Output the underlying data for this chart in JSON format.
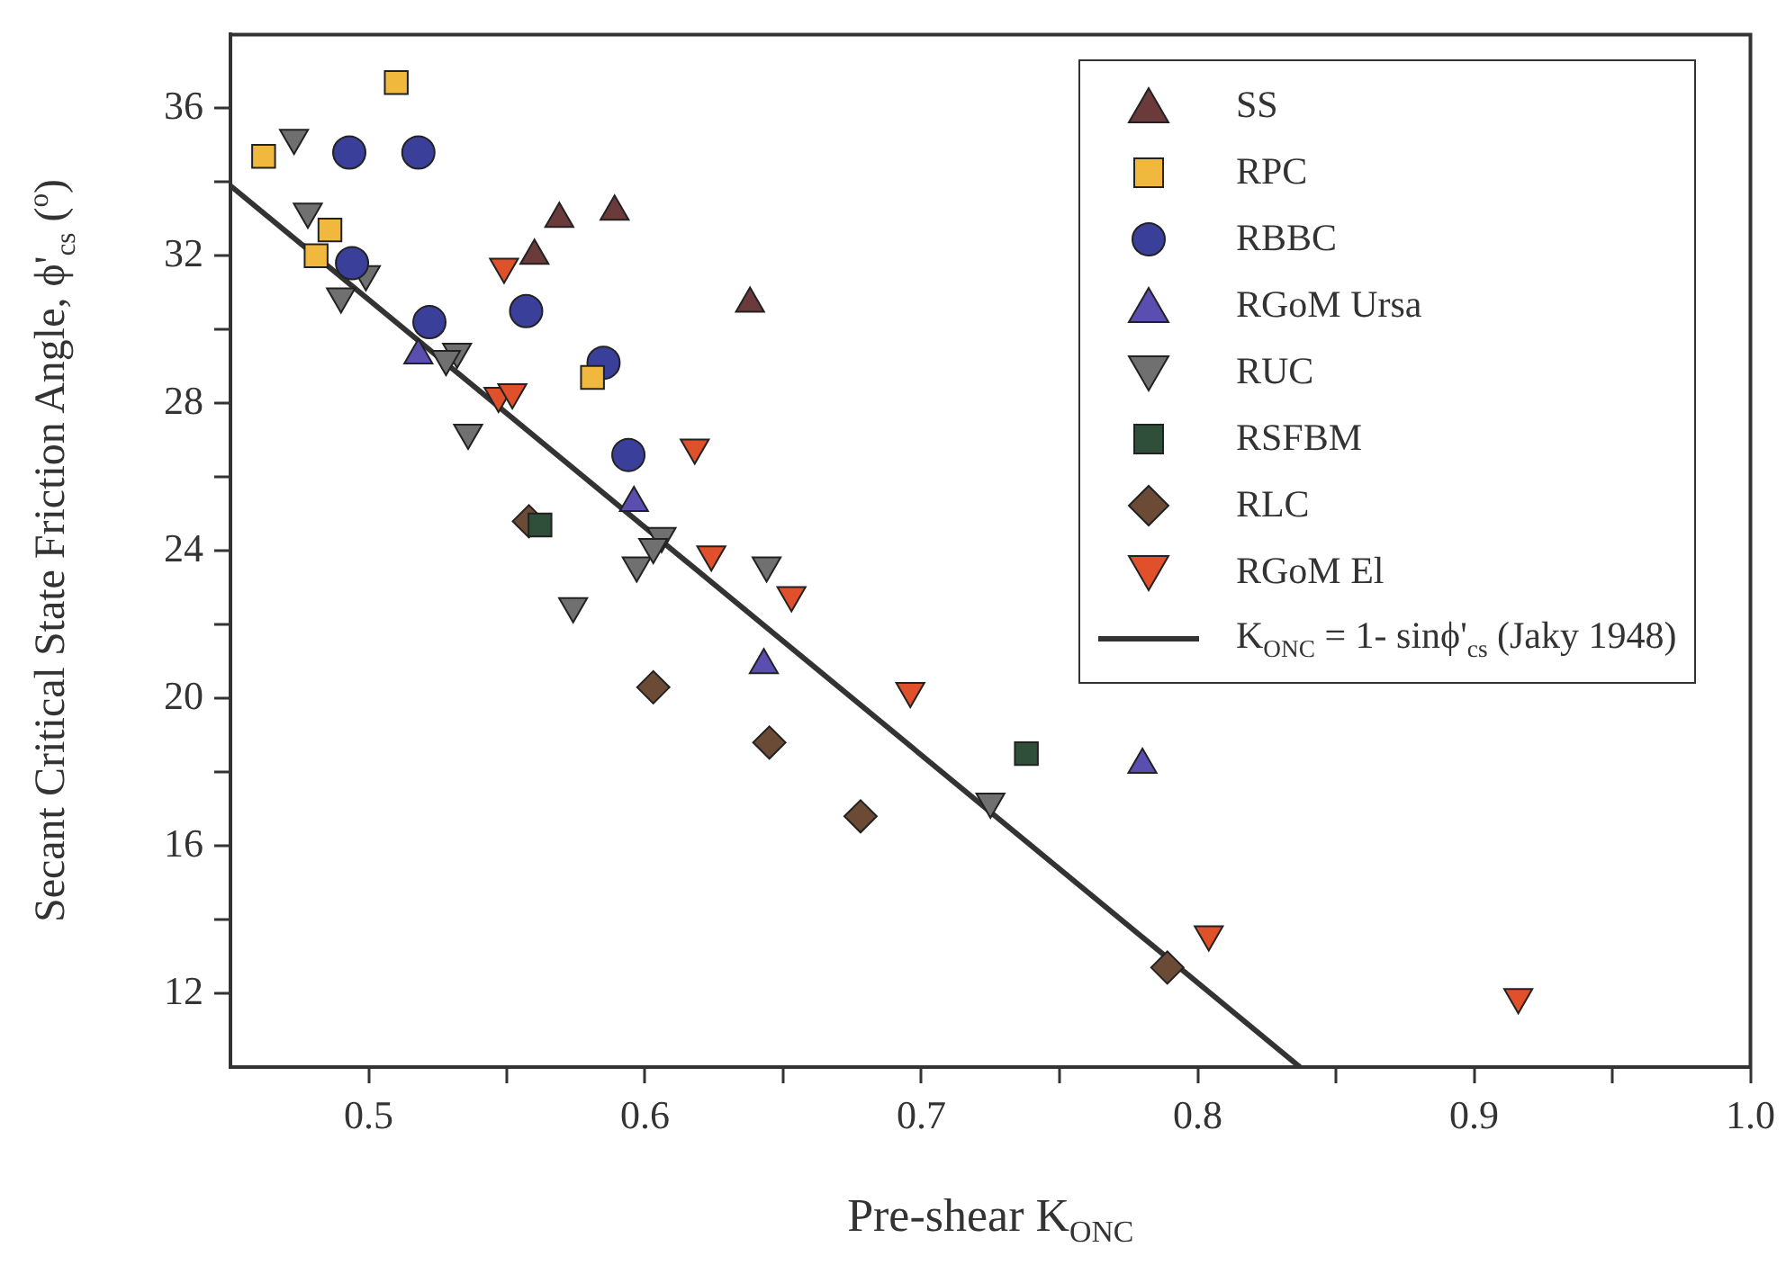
{
  "chart_data": {
    "type": "scatter",
    "xlabel": "Pre-shear K$_{ONC}$",
    "ylabel": "Secant Critical State Friction Angle, ϕ'$_{cs}$ ($^{o}$)",
    "xlim": [
      0.45,
      1.0
    ],
    "xticks": [
      0.5,
      {
        "value": 0.55,
        "label": null
      },
      0.6,
      {
        "value": 0.65,
        "label": null
      },
      0.7,
      {
        "value": 0.75,
        "label": null
      },
      0.8,
      {
        "value": 0.85,
        "label": null
      },
      0.9,
      {
        "value": 0.95,
        "label": null
      },
      "1.0"
    ],
    "ylim": [
      10,
      38
    ],
    "yticks": [
      12,
      {
        "value": 14,
        "label": null
      },
      16,
      {
        "value": 18,
        "label": null
      },
      20,
      {
        "value": 22,
        "label": null
      },
      24,
      {
        "value": 26,
        "label": null
      },
      28,
      {
        "value": 30,
        "label": null
      },
      32,
      {
        "value": 34,
        "label": null
      },
      36
    ],
    "grid": false,
    "legend": "top right",
    "series": [
      {
        "name": "SS",
        "color": "#6b3a3a",
        "marker": "triangle",
        "x": [
          0.569,
          0.589,
          0.56,
          0.638
        ],
        "values": [
          33.0,
          33.2,
          32.0,
          30.7
        ]
      },
      {
        "name": "RPC",
        "color": "#f0b83c",
        "marker": "square",
        "x": [
          0.462,
          0.51,
          0.486,
          0.481,
          0.581
        ],
        "values": [
          34.7,
          36.7,
          32.7,
          32.0,
          28.7
        ]
      },
      {
        "name": "RBBC",
        "color": "#3a3f9a",
        "marker": "circle",
        "x": [
          0.493,
          0.518,
          0.494,
          0.522,
          0.557,
          0.585,
          0.594
        ],
        "values": [
          34.8,
          34.8,
          31.8,
          30.2,
          30.5,
          29.1,
          26.6
        ]
      },
      {
        "name": "RGoM Ursa",
        "color": "#5a4fb0",
        "marker": "triangle",
        "x": [
          0.518,
          0.596,
          0.643,
          0.78
        ],
        "values": [
          29.3,
          25.3,
          20.9,
          18.2
        ]
      },
      {
        "name": "RUC",
        "color": "#707070",
        "marker": "triangle-down",
        "x": [
          0.473,
          0.478,
          0.49,
          0.499,
          0.532,
          0.528,
          0.536,
          0.597,
          0.606,
          0.603,
          0.574,
          0.644,
          0.725
        ],
        "values": [
          35.2,
          33.2,
          30.9,
          31.5,
          29.4,
          29.2,
          27.2,
          23.6,
          24.4,
          24.1,
          22.5,
          23.6,
          17.2
        ]
      },
      {
        "name": "RSFBM",
        "color": "#2f4f3a",
        "marker": "square",
        "x": [
          0.562,
          0.738
        ],
        "values": [
          24.7,
          18.5
        ]
      },
      {
        "name": "RLC",
        "color": "#6b4a36",
        "marker": "diamond",
        "x": [
          0.558,
          0.603,
          0.645,
          0.678,
          0.789
        ],
        "values": [
          24.8,
          20.3,
          18.8,
          16.8,
          12.7
        ]
      },
      {
        "name": "RGoM El",
        "color": "#e0502a",
        "marker": "triangle-down",
        "x": [
          0.549,
          0.547,
          0.552,
          0.618,
          0.624,
          0.653,
          0.696,
          0.804,
          0.916
        ],
        "values": [
          31.7,
          28.2,
          28.3,
          26.8,
          23.9,
          22.8,
          20.2,
          13.6,
          11.9
        ]
      },
      {
        "name": "K$_{ONC}$ = 1- sinϕ'$_{cs}$ (Jaky 1948)",
        "type": "line",
        "color": "#333333",
        "marker": "none",
        "line_style": "solid",
        "x": [
          0.45,
          0.837
        ],
        "values": [
          33.9,
          10
        ]
      }
    ]
  }
}
